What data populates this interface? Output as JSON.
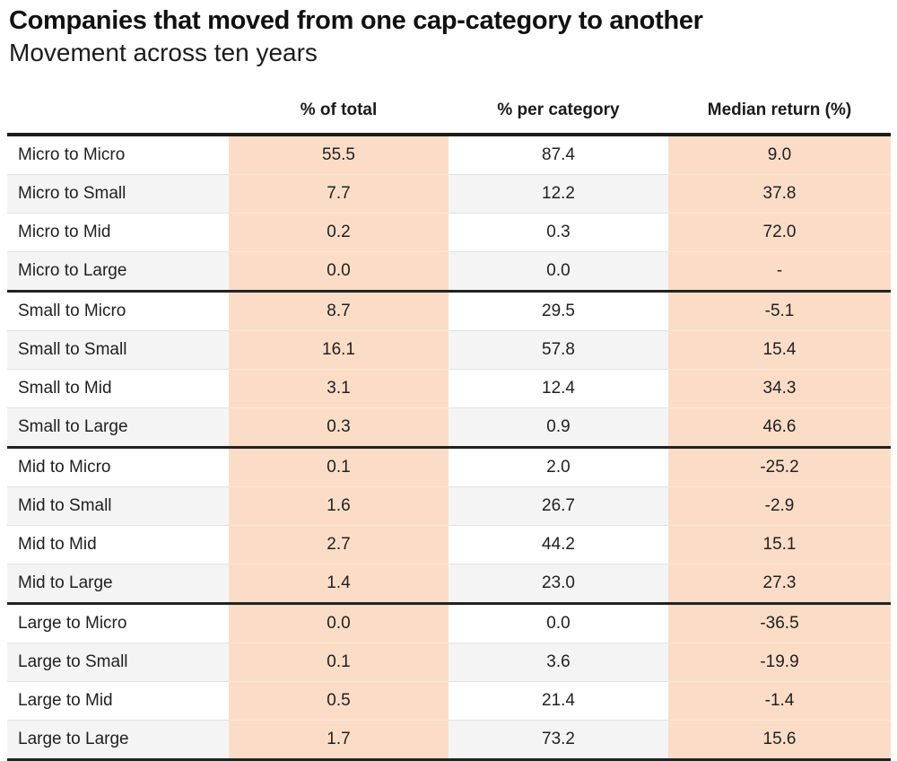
{
  "chart_data": {
    "type": "table",
    "title": "Companies that moved from one cap-category to another",
    "subtitle": "Movement across ten years",
    "columns": [
      "",
      "% of total",
      "% per category",
      "Median return (%)"
    ],
    "group_size": 4,
    "rows": [
      [
        "Micro to Micro",
        "55.5",
        "87.4",
        "9.0"
      ],
      [
        "Micro to Small",
        "7.7",
        "12.2",
        "37.8"
      ],
      [
        "Micro to Mid",
        "0.2",
        "0.3",
        "72.0"
      ],
      [
        "Micro to Large",
        "0.0",
        "0.0",
        "-"
      ],
      [
        "Small to Micro",
        "8.7",
        "29.5",
        "-5.1"
      ],
      [
        "Small to Small",
        "16.1",
        "57.8",
        "15.4"
      ],
      [
        "Small to Mid",
        "3.1",
        "12.4",
        "34.3"
      ],
      [
        "Small to Large",
        "0.3",
        "0.9",
        "46.6"
      ],
      [
        "Mid to Micro",
        "0.1",
        "2.0",
        "-25.2"
      ],
      [
        "Mid to Small",
        "1.6",
        "26.7",
        "-2.9"
      ],
      [
        "Mid to Mid",
        "2.7",
        "44.2",
        "15.1"
      ],
      [
        "Mid to Large",
        "1.4",
        "23.0",
        "27.3"
      ],
      [
        "Large to Micro",
        "0.0",
        "0.0",
        "-36.5"
      ],
      [
        "Large to Small",
        "0.1",
        "3.6",
        "-19.9"
      ],
      [
        "Large to Mid",
        "0.5",
        "21.4",
        "-1.4"
      ],
      [
        "Large to Large",
        "1.7",
        "73.2",
        "15.6"
      ]
    ]
  },
  "colors": {
    "highlight_column": "#fbddc7",
    "row_stripe": "#f4f4f4",
    "row_divider": "#e3e3e3",
    "heavy_border": "#222222",
    "text": "#212121"
  }
}
